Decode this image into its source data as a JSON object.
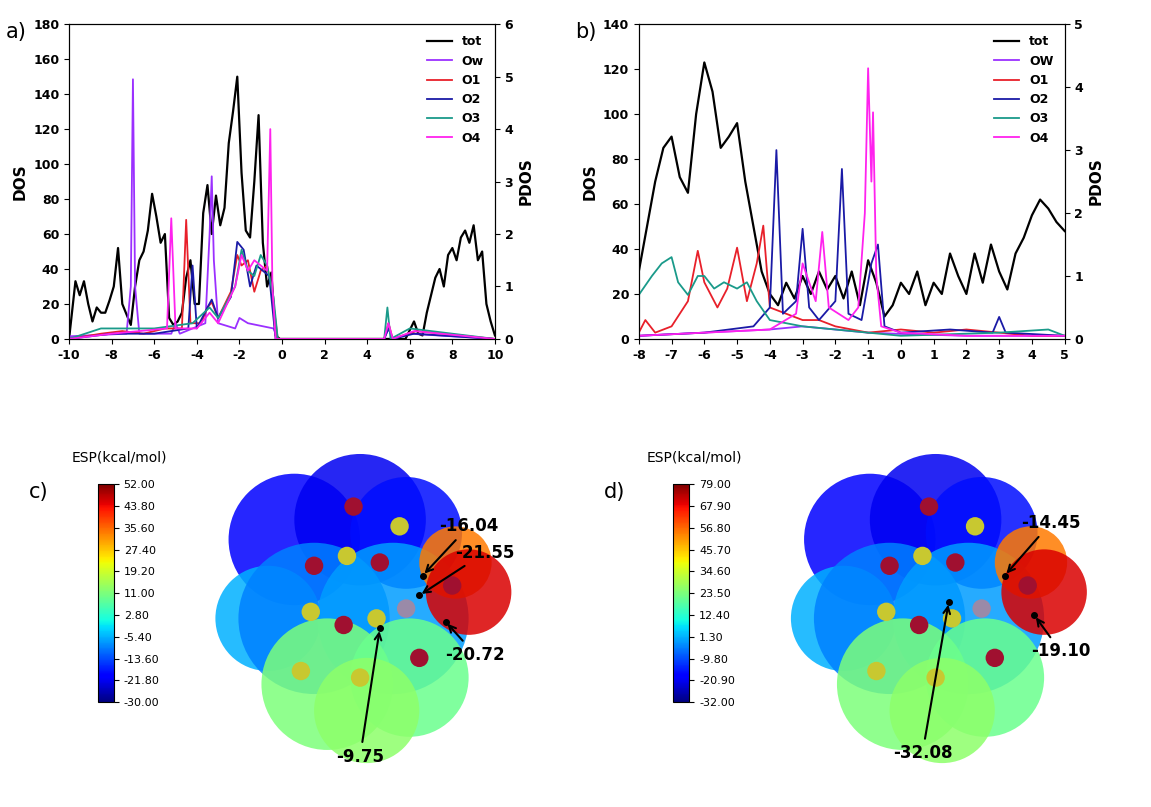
{
  "chart_data": [
    {
      "type": "line",
      "panel": "a)",
      "ylabel": "DOS",
      "y2label": "PDOS",
      "xlim": [
        -10,
        10
      ],
      "xticks": [
        -10,
        -8,
        -6,
        -4,
        -2,
        0,
        2,
        4,
        6,
        8,
        10
      ],
      "ylim": [
        0,
        180
      ],
      "yticks": [
        0,
        20,
        40,
        60,
        80,
        100,
        120,
        140,
        160,
        180
      ],
      "y2lim": [
        0,
        6
      ],
      "y2ticks": [
        0,
        1,
        2,
        3,
        4,
        5,
        6
      ],
      "legend": "upper right",
      "series": [
        {
          "name": "tot",
          "color": "#000000",
          "x": [
            -10,
            -9.7,
            -9.5,
            -9.3,
            -9.1,
            -8.9,
            -8.7,
            -8.5,
            -8.3,
            -8.1,
            -7.9,
            -7.7,
            -7.5,
            -7.3,
            -7.1,
            -6.9,
            -6.7,
            -6.5,
            -6.3,
            -6.1,
            -5.9,
            -5.7,
            -5.5,
            -5.3,
            -5.1,
            -4.9,
            -4.7,
            -4.5,
            -4.3,
            -4.1,
            -3.9,
            -3.7,
            -3.5,
            -3.3,
            -3.1,
            -2.9,
            -2.7,
            -2.5,
            -2.3,
            -2.1,
            -1.9,
            -1.7,
            -1.5,
            -1.3,
            -1.1,
            -0.9,
            -0.7,
            -0.5,
            -0.3,
            -0.1,
            5.8,
            6.0,
            6.2,
            6.4,
            6.6,
            6.8,
            7.0,
            7.2,
            7.4,
            7.6,
            7.8,
            8.0,
            8.2,
            8.4,
            8.6,
            8.8,
            9.0,
            9.2,
            9.4,
            9.6,
            9.8,
            10
          ],
          "values": [
            0,
            33,
            25,
            33,
            20,
            10,
            18,
            15,
            15,
            22,
            30,
            52,
            20,
            14,
            8,
            30,
            45,
            50,
            62,
            83,
            70,
            55,
            60,
            12,
            8,
            10,
            15,
            35,
            45,
            20,
            20,
            72,
            88,
            60,
            82,
            65,
            75,
            112,
            130,
            150,
            95,
            62,
            58,
            90,
            128,
            55,
            30,
            38,
            2,
            0,
            0,
            5,
            10,
            3,
            2,
            15,
            25,
            35,
            40,
            30,
            48,
            52,
            45,
            58,
            62,
            55,
            65,
            45,
            50,
            20,
            10,
            2
          ]
        },
        {
          "name": "Ow",
          "color": "#9b30ff",
          "axis": "y2",
          "x": [
            -10,
            -7.3,
            -7.1,
            -7.0,
            -6.9,
            -6.7,
            -5.2,
            -5.0,
            -4.8,
            -3.6,
            -3.4,
            -3.3,
            -3.2,
            -3.0,
            -2.2,
            -2.0,
            -1.6,
            -0.4,
            -0.2,
            4.8,
            5.0,
            5.2,
            6.0,
            10
          ],
          "values": [
            0.05,
            0.1,
            1.0,
            4.95,
            1.0,
            0.1,
            0.1,
            0.3,
            0.1,
            0.3,
            2.0,
            3.1,
            1.5,
            0.3,
            0.2,
            0.4,
            0.3,
            0.2,
            0,
            0,
            0.2,
            0,
            0.1,
            0
          ]
        },
        {
          "name": "O1",
          "color": "#e8202a",
          "axis": "y2",
          "x": [
            -10,
            -8.5,
            -7.5,
            -6.5,
            -5.5,
            -4.7,
            -4.5,
            -4.3,
            -3.8,
            -3.5,
            -3.3,
            -3.0,
            -2.4,
            -2.1,
            -1.9,
            -1.6,
            -1.3,
            -1.0,
            -0.7,
            -0.5,
            -0.2,
            4.8,
            5.0,
            5.2,
            6.3,
            10
          ],
          "values": [
            0,
            0.1,
            0.15,
            0.1,
            0.2,
            0.2,
            2.27,
            0.3,
            0.3,
            0.6,
            0.7,
            0.4,
            0.9,
            1.6,
            1.4,
            1.5,
            0.9,
            1.3,
            1.4,
            1.0,
            0,
            0,
            0.3,
            0,
            0.15,
            0
          ]
        },
        {
          "name": "O2",
          "color": "#1a1aa6",
          "axis": "y2",
          "x": [
            -10,
            -8,
            -6,
            -4.4,
            -4.2,
            -4.0,
            -3.5,
            -3.3,
            -3.0,
            -2.4,
            -2.1,
            -1.8,
            -1.5,
            -1.2,
            -0.9,
            -0.6,
            -0.3,
            4.8,
            5.0,
            5.2,
            6.2,
            10
          ],
          "values": [
            0,
            0.1,
            0.1,
            0.2,
            1.4,
            0.2,
            0.6,
            0.75,
            0.4,
            0.8,
            1.85,
            1.7,
            1.0,
            1.4,
            1.3,
            1.2,
            0,
            0,
            0.2,
            0,
            0.1,
            0
          ]
        },
        {
          "name": "O3",
          "color": "#1a9a8a",
          "axis": "y2",
          "x": [
            -10,
            -8.5,
            -6,
            -4.2,
            -3.4,
            -3.0,
            -2.2,
            -1.9,
            -1.6,
            -1.3,
            -1.0,
            -0.7,
            -0.4,
            -0.2,
            4.8,
            4.95,
            5.1,
            6.0,
            10
          ],
          "values": [
            0,
            0.2,
            0.2,
            0.3,
            0.6,
            0.4,
            1.0,
            1.7,
            1.3,
            1.2,
            1.6,
            1.4,
            0.8,
            0,
            0,
            0.6,
            0,
            0.2,
            0
          ]
        },
        {
          "name": "O4",
          "color": "#ff22ee",
          "axis": "y2",
          "x": [
            -10,
            -8,
            -5.4,
            -5.2,
            -5.0,
            -4.0,
            -3.4,
            -3.0,
            -2.2,
            -1.9,
            -1.6,
            -1.3,
            -1.0,
            -0.7,
            -0.55,
            -0.45,
            -0.3,
            4.8,
            5.0,
            5.2,
            6.2,
            10
          ],
          "values": [
            0,
            0.1,
            0.2,
            2.3,
            0.2,
            0.2,
            0.5,
            0.3,
            1.0,
            1.6,
            1.3,
            1.5,
            1.4,
            1.3,
            4.0,
            1.0,
            0,
            0,
            0.3,
            0,
            0.15,
            0
          ]
        }
      ]
    },
    {
      "type": "line",
      "panel": "b)",
      "ylabel": "DOS",
      "y2label": "PDOS",
      "xlim": [
        -8,
        5
      ],
      "xticks": [
        -8,
        -7,
        -6,
        -5,
        -4,
        -3,
        -2,
        -1,
        0,
        1,
        2,
        3,
        4,
        5
      ],
      "ylim": [
        0,
        140
      ],
      "yticks": [
        0,
        20,
        40,
        60,
        80,
        100,
        120,
        140
      ],
      "y2lim": [
        0,
        5
      ],
      "y2ticks": [
        0,
        1,
        2,
        3,
        4,
        5
      ],
      "legend": "upper right",
      "series": [
        {
          "name": "tot",
          "color": "#000000",
          "x": [
            -8,
            -7.75,
            -7.5,
            -7.25,
            -7,
            -6.75,
            -6.5,
            -6.25,
            -6,
            -5.75,
            -5.5,
            -5.25,
            -5,
            -4.75,
            -4.5,
            -4.25,
            -4,
            -3.75,
            -3.5,
            -3.25,
            -3,
            -2.75,
            -2.5,
            -2.25,
            -2,
            -1.75,
            -1.5,
            -1.25,
            -1,
            -0.75,
            -0.5,
            -0.25,
            0,
            0.25,
            0.5,
            0.75,
            1,
            1.25,
            1.5,
            1.75,
            2,
            2.25,
            2.5,
            2.75,
            3,
            3.25,
            3.5,
            3.75,
            4,
            4.25,
            4.5,
            4.75,
            5
          ],
          "values": [
            30,
            50,
            70,
            85,
            90,
            72,
            65,
            100,
            123,
            110,
            85,
            90,
            96,
            70,
            50,
            30,
            20,
            15,
            25,
            18,
            28,
            20,
            30,
            22,
            28,
            18,
            30,
            15,
            35,
            25,
            10,
            15,
            25,
            20,
            30,
            15,
            25,
            20,
            38,
            28,
            20,
            38,
            25,
            42,
            30,
            22,
            38,
            45,
            55,
            62,
            58,
            52,
            48
          ]
        },
        {
          "name": "OW",
          "color": "#9b30ff",
          "axis": "y2",
          "x": [
            -8,
            -6,
            -4,
            -3,
            -2,
            -1,
            0,
            2,
            4,
            5
          ],
          "values": [
            0.05,
            0.1,
            0.15,
            0.2,
            0.15,
            0.1,
            0.08,
            0.05,
            0.05,
            0.05
          ]
        },
        {
          "name": "O1",
          "color": "#e8202a",
          "axis": "y2",
          "x": [
            -8,
            -7.8,
            -7.5,
            -7,
            -6.5,
            -6.2,
            -6,
            -5.6,
            -5.3,
            -5,
            -4.7,
            -4.4,
            -4.2,
            -4,
            -3.5,
            -3,
            -2.5,
            -2,
            -1,
            0,
            1,
            2,
            3,
            4,
            5
          ],
          "values": [
            0.1,
            0.3,
            0.1,
            0.2,
            0.6,
            1.4,
            0.9,
            0.5,
            0.8,
            1.45,
            0.6,
            1.2,
            1.8,
            0.5,
            0.4,
            0.3,
            0.3,
            0.2,
            0.1,
            0.15,
            0.1,
            0.15,
            0.1,
            0.05,
            0.05
          ]
        },
        {
          "name": "O2",
          "color": "#1a1aa6",
          "axis": "y2",
          "x": [
            -8,
            -6,
            -4.5,
            -4.0,
            -3.8,
            -3.6,
            -3.2,
            -3.0,
            -2.8,
            -2.5,
            -2.0,
            -1.8,
            -1.6,
            -1.2,
            -0.9,
            -0.7,
            -0.5,
            0,
            1.5,
            2.8,
            3,
            3.2,
            5
          ],
          "values": [
            0.05,
            0.1,
            0.2,
            0.5,
            3.0,
            0.4,
            0.6,
            1.75,
            0.5,
            0.3,
            0.6,
            2.7,
            0.4,
            0.3,
            1.2,
            1.5,
            0.2,
            0.1,
            0.15,
            0.1,
            0.35,
            0.1,
            0.05
          ]
        },
        {
          "name": "O3",
          "color": "#1a9a8a",
          "axis": "y2",
          "x": [
            -8,
            -7.6,
            -7.3,
            -7.0,
            -6.8,
            -6.5,
            -6.2,
            -6.0,
            -5.7,
            -5.4,
            -5.0,
            -4.7,
            -4.4,
            -4.0,
            -3,
            -2,
            -1,
            0,
            3,
            4.5,
            5
          ],
          "values": [
            0.7,
            1.0,
            1.2,
            1.3,
            0.9,
            0.7,
            1.0,
            1.0,
            0.8,
            0.9,
            0.8,
            0.9,
            0.6,
            0.3,
            0.2,
            0.15,
            0.1,
            0.05,
            0.1,
            0.15,
            0.05
          ]
        },
        {
          "name": "O4",
          "color": "#ff22ee",
          "axis": "y2",
          "x": [
            -8,
            -6,
            -4,
            -3.2,
            -3.0,
            -2.6,
            -2.4,
            -2.2,
            -1.6,
            -1.3,
            -1.1,
            -1.0,
            -0.9,
            -0.85,
            -0.75,
            -0.6,
            0,
            2,
            5
          ],
          "values": [
            0.05,
            0.1,
            0.15,
            0.4,
            1.2,
            0.6,
            1.7,
            0.5,
            0.3,
            0.5,
            2.0,
            4.3,
            2.5,
            3.6,
            1.0,
            0.2,
            0.1,
            0.05,
            0.05
          ]
        }
      ]
    },
    {
      "type": "esp_surface",
      "panel": "c)",
      "colorbar": {
        "title": "ESP(kcal/mol)",
        "range": [
          -30,
          52
        ],
        "ticks": [
          {
            "value": 52,
            "label": "52.00"
          },
          {
            "value": 43.8,
            "label": "43.80"
          },
          {
            "value": 35.6,
            "label": "35.60"
          },
          {
            "value": 27.4,
            "label": "27.40"
          },
          {
            "value": 19.2,
            "label": "19.20"
          },
          {
            "value": 11,
            "label": "11.00"
          },
          {
            "value": 2.8,
            "label": "2.80"
          },
          {
            "value": -5.4,
            "label": "-5.40"
          },
          {
            "value": -13.6,
            "label": "-13.60"
          },
          {
            "value": -21.8,
            "label": "-21.80"
          },
          {
            "value": -30,
            "label": "-30.00"
          }
        ]
      },
      "annotations": [
        {
          "value": -16.04,
          "label": "-16.04"
        },
        {
          "value": -21.55,
          "label": "-21.55"
        },
        {
          "value": -20.72,
          "label": "-20.72"
        },
        {
          "value": -9.75,
          "label": "-9.75"
        }
      ]
    },
    {
      "type": "esp_surface",
      "panel": "d)",
      "colorbar": {
        "title": "ESP(kcal/mol)",
        "range": [
          -32,
          79
        ],
        "ticks": [
          {
            "value": 79,
            "label": "79.00"
          },
          {
            "value": 67.9,
            "label": "67.90"
          },
          {
            "value": 56.8,
            "label": "56.80"
          },
          {
            "value": 45.7,
            "label": "45.70"
          },
          {
            "value": 34.6,
            "label": "34.60"
          },
          {
            "value": 23.5,
            "label": "23.50"
          },
          {
            "value": 12.4,
            "label": "12.40"
          },
          {
            "value": 1.3,
            "label": "1.30"
          },
          {
            "value": -9.8,
            "label": "-9.80"
          },
          {
            "value": -20.9,
            "label": "-20.90"
          },
          {
            "value": -32,
            "label": "-32.00"
          }
        ]
      },
      "annotations": [
        {
          "value": -14.45,
          "label": "-14.45"
        },
        {
          "value": -19.1,
          "label": "-19.10"
        },
        {
          "value": -32.08,
          "label": "-32.08"
        }
      ]
    }
  ]
}
